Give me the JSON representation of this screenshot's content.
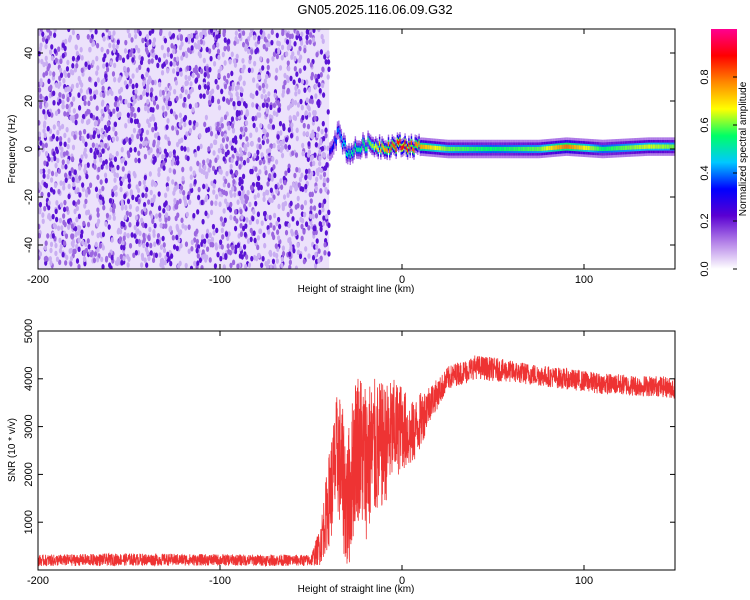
{
  "title": "GN05.2025.116.06.09.G32",
  "chart_data": [
    {
      "type": "heatmap",
      "xlabel": "Height of straight line (km)",
      "ylabel": "Frequency (Hz)",
      "xlim": [
        -200,
        150
      ],
      "ylim": [
        -50,
        50
      ],
      "x_ticks": [
        -200,
        -100,
        0,
        100
      ],
      "y_ticks": [
        -40,
        -20,
        0,
        20,
        40
      ],
      "colorbar": {
        "label": "Normalized spectral amplitude",
        "range": [
          0,
          1
        ],
        "ticks": [
          0.0,
          0.2,
          0.4,
          0.6,
          0.8
        ],
        "colormap": [
          "#ffffff",
          "#b482e8",
          "#5a00d2",
          "#0000ff",
          "#00c8ff",
          "#00ff66",
          "#ffff00",
          "#ff8800",
          "#ff0000",
          "#ff0090"
        ]
      },
      "noise_region_x": [
        -200,
        -40
      ],
      "signal_track": [
        {
          "x": -40,
          "freq_hz": 0,
          "amp": 0.3
        },
        {
          "x": -35,
          "freq_hz": 7,
          "amp": 0.4
        },
        {
          "x": -30,
          "freq_hz": -2,
          "amp": 0.5
        },
        {
          "x": -20,
          "freq_hz": 2,
          "amp": 0.55
        },
        {
          "x": -10,
          "freq_hz": 1,
          "amp": 0.75
        },
        {
          "x": 0,
          "freq_hz": 1.5,
          "amp": 0.9
        },
        {
          "x": 10,
          "freq_hz": 1,
          "amp": 0.75
        },
        {
          "x": 25,
          "freq_hz": 0,
          "amp": 0.6
        },
        {
          "x": 50,
          "freq_hz": 0,
          "amp": 0.55
        },
        {
          "x": 75,
          "freq_hz": 0,
          "amp": 0.6
        },
        {
          "x": 90,
          "freq_hz": 1,
          "amp": 0.8
        },
        {
          "x": 110,
          "freq_hz": 0,
          "amp": 0.55
        },
        {
          "x": 135,
          "freq_hz": 1,
          "amp": 0.65
        },
        {
          "x": 150,
          "freq_hz": 1,
          "amp": 0.6
        }
      ]
    },
    {
      "type": "line",
      "xlabel": "Height of straight line (km)",
      "ylabel": "SNR (10 * v/v)",
      "xlim": [
        -200,
        150
      ],
      "ylim": [
        0,
        5000
      ],
      "x_ticks": [
        -200,
        -100,
        0,
        100
      ],
      "y_ticks": [
        1000,
        2000,
        3000,
        4000,
        5000
      ],
      "color": "#ee3333",
      "series": [
        {
          "x": [
            -200,
            -150,
            -100,
            -50,
            -45,
            -40,
            -35,
            -30,
            -25,
            -20,
            -15,
            -10,
            -5,
            0,
            5,
            10,
            15,
            20,
            25,
            30,
            35,
            40,
            50,
            60,
            70,
            80,
            90,
            100,
            110,
            120,
            130,
            140,
            150
          ],
          "values": [
            200,
            220,
            210,
            200,
            500,
            1500,
            2500,
            1300,
            2700,
            2300,
            2500,
            2600,
            2900,
            3000,
            2800,
            3100,
            3500,
            3700,
            4000,
            4100,
            4150,
            4250,
            4200,
            4150,
            4100,
            4050,
            4000,
            3950,
            3900,
            3880,
            3850,
            3850,
            3800
          ],
          "spread": [
            120,
            130,
            120,
            120,
            400,
            1000,
            1400,
            1500,
            1600,
            1700,
            1500,
            1300,
            1100,
            900,
            700,
            600,
            400,
            300,
            250,
            250,
            250,
            250,
            250,
            230,
            230,
            220,
            220,
            220,
            220,
            220,
            220,
            220,
            220
          ]
        }
      ]
    }
  ]
}
